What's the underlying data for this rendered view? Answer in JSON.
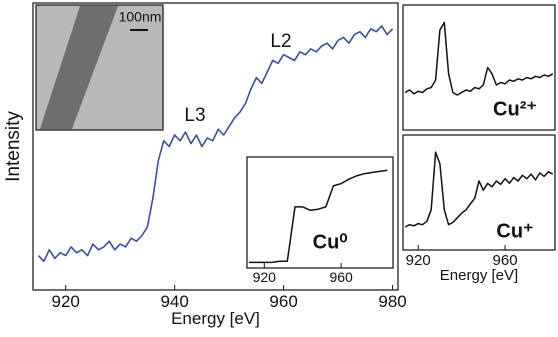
{
  "chart_data": [
    {
      "type": "line",
      "xlabel": "Energy [eV]",
      "ylabel": "Intensity",
      "xlim": [
        914,
        981
      ],
      "ylim": [
        0,
        1
      ],
      "xticks": [
        920,
        940,
        960,
        980
      ],
      "annotations": [
        "L3",
        "L2",
        "100nm"
      ],
      "x": [
        915,
        916,
        917,
        918,
        919,
        920,
        921,
        922,
        923,
        924,
        925,
        926,
        927,
        928,
        929,
        930,
        931,
        932,
        933,
        934,
        935,
        936,
        937,
        938,
        939,
        940,
        941,
        942,
        943,
        944,
        945,
        946,
        947,
        948,
        949,
        950,
        951,
        952,
        953,
        954,
        955,
        956,
        957,
        958,
        959,
        960,
        961,
        962,
        963,
        964,
        965,
        966,
        967,
        968,
        969,
        970,
        971,
        972,
        973,
        974,
        975,
        976,
        977,
        978,
        979,
        980
      ],
      "series": [
        {
          "color": "#3a4fa0",
          "values": [
            0.12,
            0.1,
            0.14,
            0.11,
            0.13,
            0.12,
            0.15,
            0.13,
            0.14,
            0.12,
            0.16,
            0.14,
            0.15,
            0.17,
            0.14,
            0.16,
            0.15,
            0.18,
            0.17,
            0.19,
            0.22,
            0.32,
            0.45,
            0.52,
            0.5,
            0.54,
            0.52,
            0.55,
            0.51,
            0.54,
            0.5,
            0.53,
            0.52,
            0.56,
            0.54,
            0.57,
            0.6,
            0.62,
            0.65,
            0.7,
            0.74,
            0.72,
            0.76,
            0.8,
            0.79,
            0.82,
            0.81,
            0.8,
            0.83,
            0.82,
            0.84,
            0.83,
            0.85,
            0.86,
            0.84,
            0.87,
            0.88,
            0.86,
            0.89,
            0.9,
            0.88,
            0.91,
            0.9,
            0.92,
            0.89,
            0.91
          ]
        }
      ]
    },
    {
      "type": "line",
      "xlim": [
        911,
        987
      ],
      "ylim": [
        0,
        1
      ],
      "xticks": [
        920,
        960
      ],
      "annotations": [
        "Cu⁰"
      ],
      "x": [
        912,
        916,
        920,
        924,
        928,
        932,
        936,
        940,
        944,
        948,
        952,
        956,
        960,
        964,
        968,
        972,
        976,
        980,
        984
      ],
      "series": [
        {
          "color": "#111111",
          "values": [
            0.05,
            0.05,
            0.05,
            0.05,
            0.06,
            0.06,
            0.55,
            0.55,
            0.52,
            0.53,
            0.55,
            0.74,
            0.76,
            0.8,
            0.83,
            0.85,
            0.86,
            0.87,
            0.88
          ]
        }
      ]
    },
    {
      "type": "line",
      "xlim": [
        913,
        983
      ],
      "ylim": [
        0,
        1
      ],
      "annotations": [
        "Cu²⁺"
      ],
      "x": [
        914,
        916,
        918,
        920,
        922,
        924,
        926,
        928,
        930,
        932,
        934,
        936,
        938,
        940,
        942,
        944,
        946,
        948,
        950,
        952,
        954,
        956,
        958,
        960,
        962,
        964,
        966,
        968,
        970,
        972,
        974,
        976,
        978,
        980,
        982
      ],
      "series": [
        {
          "color": "#111111",
          "values": [
            0.3,
            0.32,
            0.29,
            0.31,
            0.3,
            0.33,
            0.34,
            0.4,
            0.8,
            0.86,
            0.45,
            0.3,
            0.28,
            0.3,
            0.32,
            0.31,
            0.34,
            0.33,
            0.36,
            0.5,
            0.45,
            0.36,
            0.38,
            0.37,
            0.4,
            0.39,
            0.41,
            0.4,
            0.42,
            0.41,
            0.43,
            0.42,
            0.44,
            0.43,
            0.45
          ]
        }
      ]
    },
    {
      "type": "line",
      "xlabel": "Energy [eV]",
      "xlim": [
        913,
        983
      ],
      "ylim": [
        0,
        1
      ],
      "xticks": [
        920,
        960
      ],
      "annotations": [
        "Cu⁺"
      ],
      "x": [
        914,
        916,
        918,
        920,
        922,
        924,
        926,
        928,
        930,
        932,
        934,
        936,
        938,
        940,
        942,
        944,
        946,
        948,
        950,
        952,
        954,
        956,
        958,
        960,
        962,
        964,
        966,
        968,
        970,
        972,
        974,
        976,
        978,
        980,
        982
      ],
      "series": [
        {
          "color": "#111111",
          "values": [
            0.2,
            0.22,
            0.21,
            0.23,
            0.22,
            0.25,
            0.35,
            0.85,
            0.75,
            0.35,
            0.22,
            0.24,
            0.28,
            0.32,
            0.35,
            0.4,
            0.45,
            0.6,
            0.52,
            0.58,
            0.55,
            0.6,
            0.57,
            0.62,
            0.58,
            0.63,
            0.6,
            0.65,
            0.62,
            0.66,
            0.61,
            0.67,
            0.64,
            0.68,
            0.66
          ]
        }
      ]
    }
  ]
}
